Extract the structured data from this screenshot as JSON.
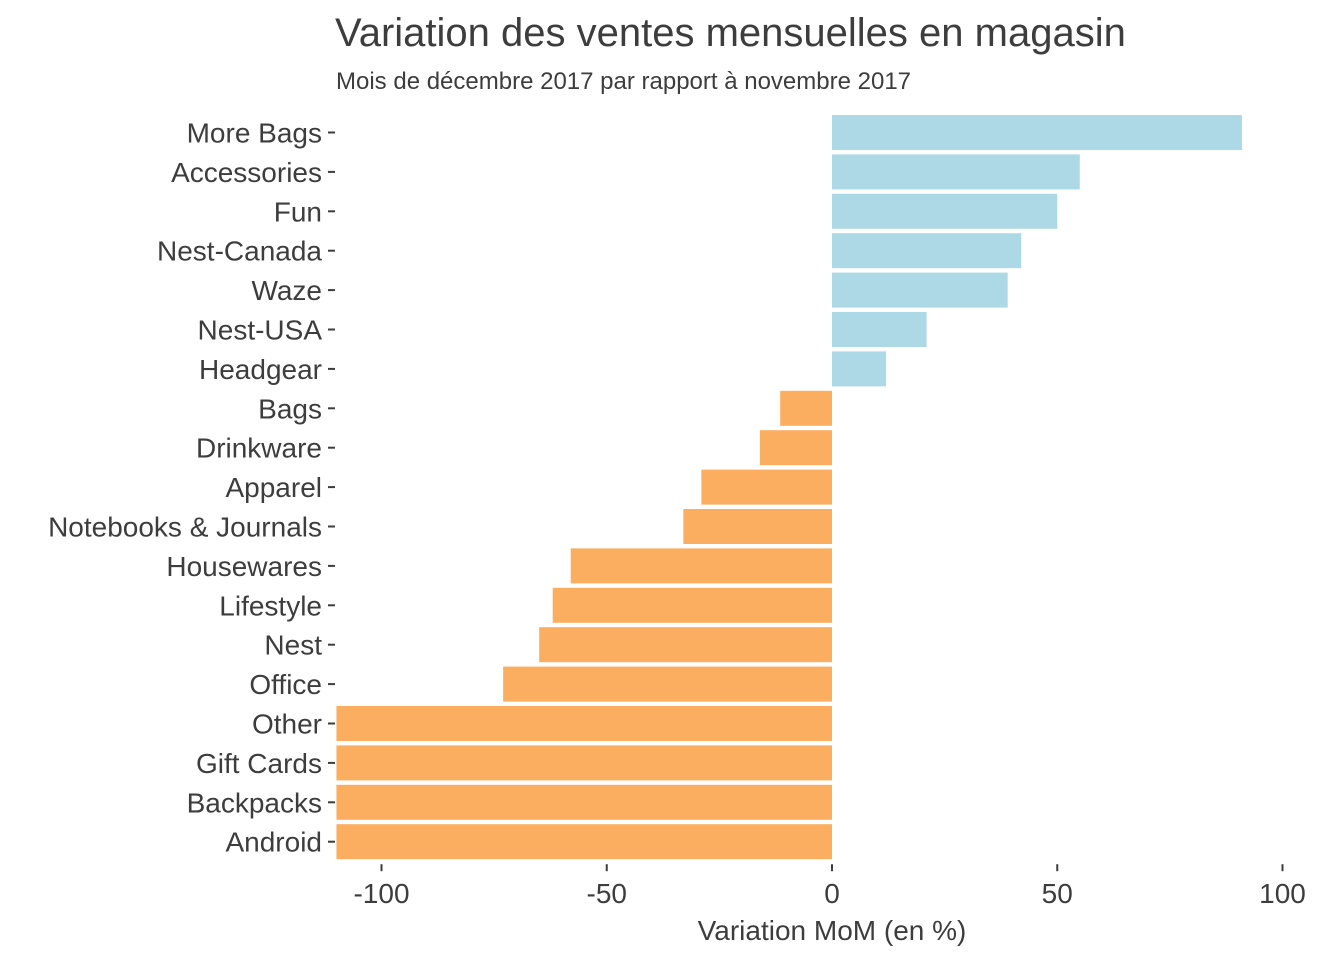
{
  "chart_data": {
    "type": "bar",
    "orientation": "horizontal",
    "title": "Variation des ventes mensuelles en magasin",
    "subtitle": "Mois de décembre 2017 par rapport à novembre 2017",
    "xlabel": "Variation MoM (en %)",
    "ylabel": "",
    "xlim": [
      -110,
      100
    ],
    "xticks": [
      -100,
      -50,
      0,
      50,
      100
    ],
    "grid": false,
    "legend": "none",
    "colors": {
      "positive": "#ADD8E6",
      "negative": "#FBAE5F"
    },
    "categories": [
      "More Bags",
      "Accessories",
      "Fun",
      "Nest-Canada",
      "Waze",
      "Nest-USA",
      "Headgear",
      "Bags",
      "Drinkware",
      "Apparel",
      "Notebooks & Journals",
      "Housewares",
      "Lifestyle",
      "Nest",
      "Office",
      "Other",
      "Gift Cards",
      "Backpacks",
      "Android"
    ],
    "values": [
      91,
      55,
      50,
      42,
      39,
      21,
      12,
      -11.5,
      -16,
      -29,
      -33,
      -58,
      -62,
      -65,
      -73,
      -110,
      -110,
      -110,
      -110
    ]
  }
}
